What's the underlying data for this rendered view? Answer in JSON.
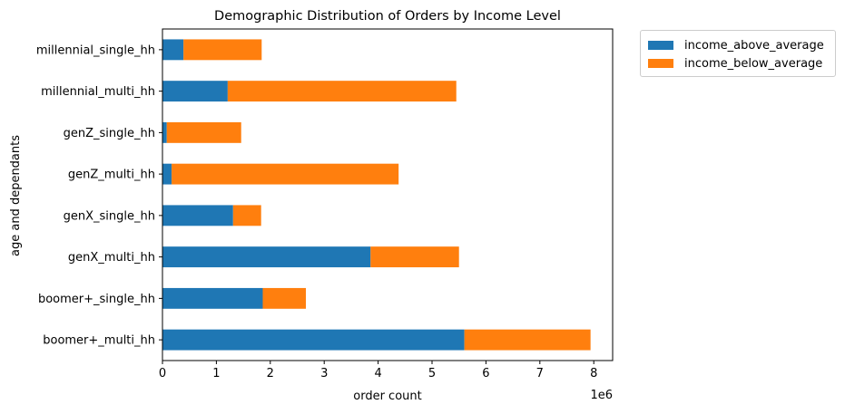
{
  "chart_data": {
    "type": "bar",
    "orientation": "horizontal",
    "stacked": true,
    "title": "Demographic Distribution of Orders by Income Level",
    "xlabel": "order count",
    "ylabel": "age and dependants",
    "x_scale_label": "1e6",
    "xlim": [
      0,
      8.35
    ],
    "xticks": [
      "0",
      "1",
      "2",
      "3",
      "4",
      "5",
      "6",
      "7",
      "8"
    ],
    "grid": false,
    "legend_position": "outside-top-right",
    "categories": [
      "boomer+_multi_hh",
      "boomer+_single_hh",
      "genX_multi_hh",
      "genX_single_hh",
      "genZ_multi_hh",
      "genZ_single_hh",
      "millennial_multi_hh",
      "millennial_single_hh"
    ],
    "series": [
      {
        "name": "income_above_average",
        "color": "#1f77b4",
        "values": [
          5.6,
          1.86,
          3.86,
          1.31,
          0.17,
          0.08,
          1.21,
          0.39
        ]
      },
      {
        "name": "income_below_average",
        "color": "#ff7f0e",
        "values": [
          2.34,
          0.8,
          1.64,
          0.52,
          4.21,
          1.38,
          4.24,
          1.45
        ]
      }
    ]
  }
}
